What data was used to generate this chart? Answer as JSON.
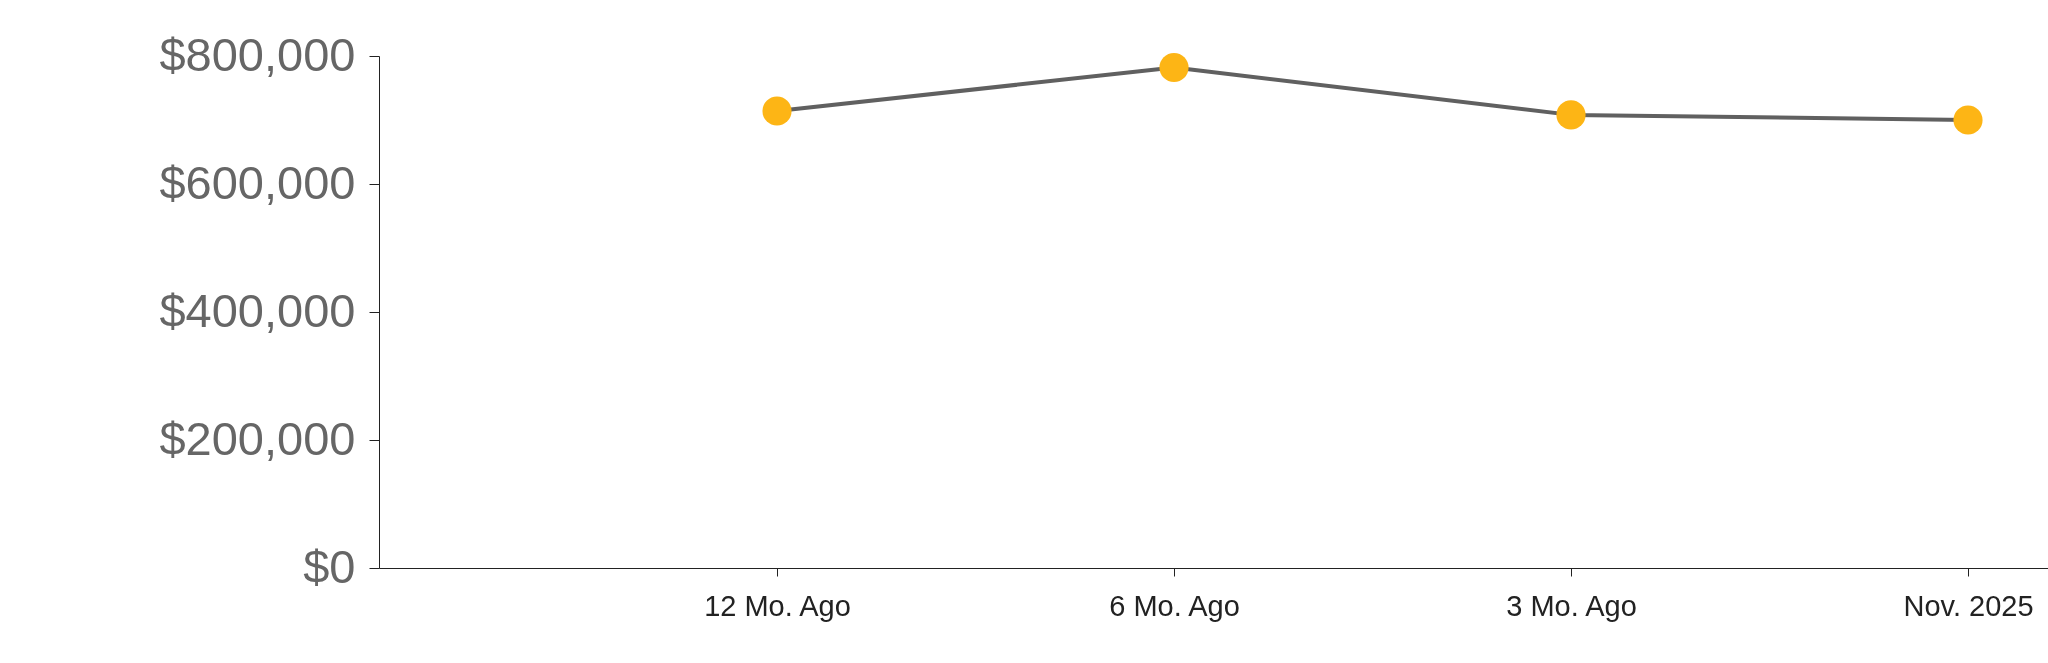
{
  "chart_data": {
    "type": "line",
    "categories": [
      "12 Mo. Ago",
      "6 Mo. Ago",
      "3 Mo. Ago",
      "Nov. 2025"
    ],
    "series": [
      {
        "color": "#606060",
        "values": [
          714000,
          782000,
          708000,
          700000
        ]
      }
    ],
    "marker": "circle",
    "ylim": [
      0,
      800000
    ],
    "yticks": [
      {
        "value": 0,
        "label": "$0"
      },
      {
        "value": 200000,
        "label": "$200,000"
      },
      {
        "value": 400000,
        "label": "$400,000"
      },
      {
        "value": 600000,
        "label": "$600,000"
      },
      {
        "value": 800000,
        "label": "$800,000"
      }
    ],
    "grid": false
  }
}
